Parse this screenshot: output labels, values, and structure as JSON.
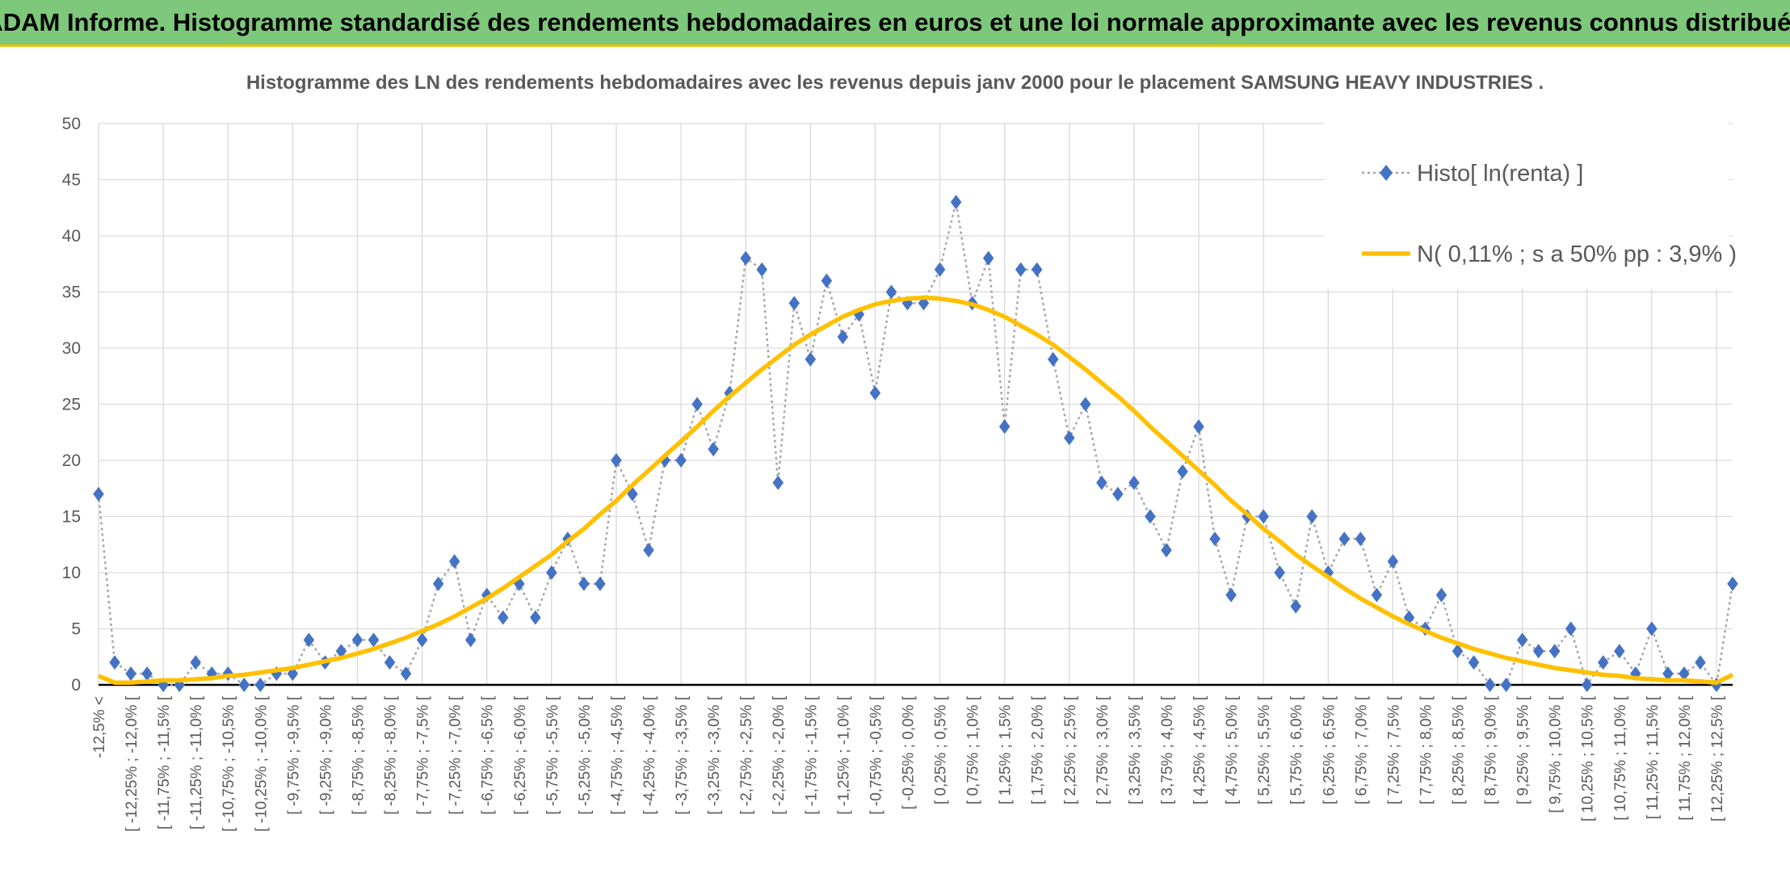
{
  "header": {
    "title": "ADAM Informe. Histogramme standardisé des rendements hebdomadaires en euros et une loi normale approximante avec les revenus connus distribués"
  },
  "chart_data": {
    "type": "line",
    "title": "Histogramme des LN des rendements hebdomadaires avec les revenus depuis janv 2000 pour le placement SAMSUNG HEAVY INDUSTRIES .",
    "categories": [
      "-12,5% <",
      null,
      "[ -12,25% ; -12,0% [",
      null,
      "[ -11,75% ; -11,5% [",
      null,
      "[ -11,25% ; -11,0% [",
      null,
      "[ -10,75% ; -10,5% [",
      null,
      "[ -10,25% ; -10,0% [",
      null,
      "[ -9,75% ; -9,5% [",
      null,
      "[ -9,25% ; -9,0% [",
      null,
      "[ -8,75% ; -8,5% [",
      null,
      "[ -8,25% ; -8,0% [",
      null,
      "[ -7,75% ; -7,5% [",
      null,
      "[ -7,25% ; -7,0% [",
      null,
      "[ -6,75% ; -6,5% [",
      null,
      "[ -6,25% ; -6,0% [",
      null,
      "[ -5,75% ; -5,5% [",
      null,
      "[ -5,25% ; -5,0% [",
      null,
      "[ -4,75% ; -4,5% [",
      null,
      "[ -4,25% ; -4,0% [",
      null,
      "[ -3,75% ; -3,5% [",
      null,
      "[ -3,25% ; -3,0% [",
      null,
      "[ -2,75% ; -2,5% [",
      null,
      "[ -2,25% ; -2,0% [",
      null,
      "[ -1,75% ; -1,5% [",
      null,
      "[ -1,25% ; -1,0% [",
      null,
      "[ -0,75% ; -0,5% [",
      null,
      "[ -0,25% ; 0,0% [",
      null,
      "[ 0,25% ; 0,5% [",
      null,
      "[ 0,75% ; 1,0% [",
      null,
      "[ 1,25% ; 1,5% [",
      null,
      "[ 1,75% ; 2,0% [",
      null,
      "[ 2,25% ; 2,5% [",
      null,
      "[ 2,75% ; 3,0% [",
      null,
      "[ 3,25% ; 3,5% [",
      null,
      "[ 3,75% ; 4,0% [",
      null,
      "[ 4,25% ; 4,5% [",
      null,
      "[ 4,75% ; 5,0% [",
      null,
      "[ 5,25% ; 5,5% [",
      null,
      "[ 5,75% ; 6,0% [",
      null,
      "[ 6,25% ; 6,5% [",
      null,
      "[ 6,75% ; 7,0% [",
      null,
      "[ 7,25% ; 7,5% [",
      null,
      "[ 7,75% ; 8,0% [",
      null,
      "[ 8,25% ; 8,5% [",
      null,
      "[ 8,75% ; 9,0% [",
      null,
      "[ 9,25% ; 9,5% [",
      null,
      "[ 9,75% ; 10,0% [",
      null,
      "[ 10,25% ; 10,5% [",
      null,
      "[ 10,75% ; 11,0% [",
      null,
      "[ 11,25% ; 11,5% [",
      null,
      "[ 11,75% ; 12,0% [",
      null,
      "[ 12,25% ; 12,5% [",
      null
    ],
    "series": [
      {
        "name": "Histo[ ln(renta) ]",
        "color": "#4472c4",
        "values": [
          17,
          2,
          1,
          1,
          0,
          0,
          2,
          1,
          1,
          0,
          0,
          1,
          1,
          4,
          2,
          3,
          4,
          4,
          2,
          1,
          4,
          9,
          11,
          4,
          8,
          6,
          9,
          6,
          10,
          13,
          9,
          9,
          20,
          17,
          12,
          20,
          20,
          25,
          21,
          26,
          38,
          37,
          18,
          34,
          29,
          36,
          31,
          33,
          26,
          35,
          34,
          34,
          37,
          43,
          34,
          38,
          23,
          37,
          37,
          29,
          22,
          25,
          18,
          17,
          18,
          15,
          12,
          19,
          23,
          13,
          8,
          15,
          15,
          10,
          7,
          15,
          10,
          13,
          13,
          8,
          11,
          6,
          5,
          8,
          3,
          2,
          0,
          0,
          4,
          3,
          3,
          5,
          0,
          2,
          3,
          1,
          5,
          1,
          1,
          2,
          0,
          9
        ]
      },
      {
        "name": "N( 0,11% ; s a 50% pp : 3,9% )",
        "color": "#ffc000",
        "values": [
          0.8,
          0.2,
          0.2,
          0.3,
          0.4,
          0.4,
          0.5,
          0.6,
          0.8,
          0.9,
          1.1,
          1.3,
          1.5,
          1.8,
          2.1,
          2.4,
          2.8,
          3.2,
          3.7,
          4.2,
          4.8,
          5.4,
          6.1,
          6.9,
          7.7,
          8.6,
          9.6,
          10.6,
          11.6,
          12.8,
          13.9,
          15.2,
          16.4,
          17.8,
          19.1,
          20.4,
          21.7,
          23.0,
          24.4,
          25.7,
          26.9,
          28.1,
          29.2,
          30.3,
          31.2,
          32.0,
          32.8,
          33.4,
          33.9,
          34.2,
          34.4,
          34.5,
          34.4,
          34.2,
          33.9,
          33.4,
          32.8,
          32.0,
          31.2,
          30.3,
          29.2,
          28.1,
          26.9,
          25.7,
          24.4,
          23.0,
          21.7,
          20.4,
          19.1,
          17.8,
          16.4,
          15.2,
          13.9,
          12.8,
          11.6,
          10.6,
          9.6,
          8.6,
          7.7,
          6.9,
          6.1,
          5.4,
          4.8,
          4.2,
          3.7,
          3.2,
          2.8,
          2.4,
          2.1,
          1.8,
          1.5,
          1.3,
          1.1,
          0.9,
          0.8,
          0.6,
          0.5,
          0.4,
          0.4,
          0.3,
          0.2,
          0.9
        ]
      }
    ],
    "ylim": [
      0,
      50
    ],
    "yticks": [
      0,
      5,
      10,
      15,
      20,
      25,
      30,
      35,
      40,
      45,
      50
    ],
    "grid": true,
    "legend": "top-right"
  }
}
